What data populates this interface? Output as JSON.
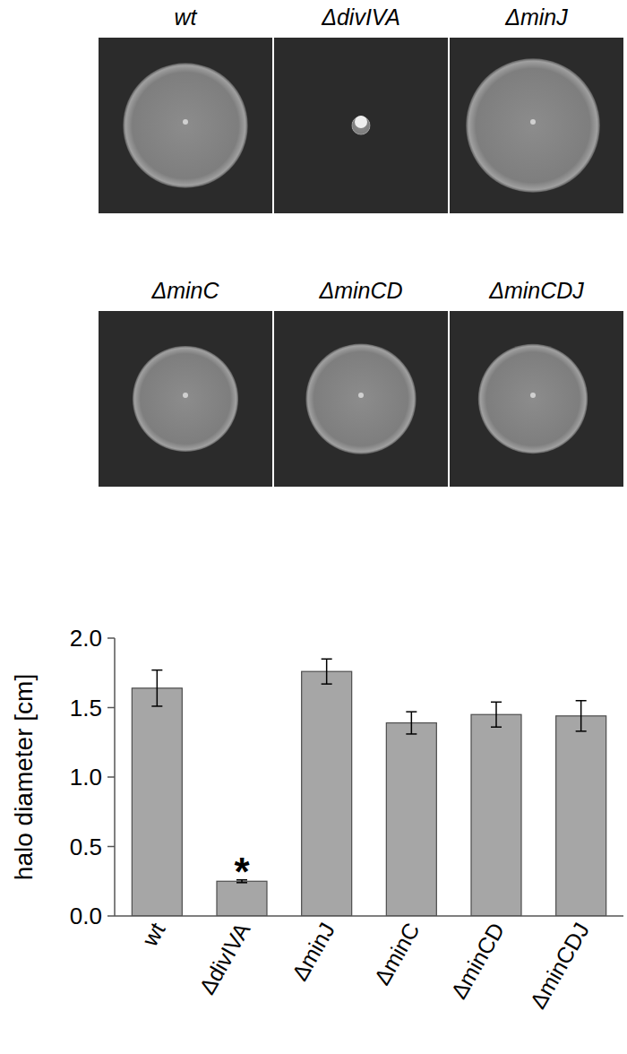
{
  "chart_data": {
    "type": "bar",
    "categories": [
      "wt",
      "ΔdivIVA",
      "ΔminJ",
      "ΔminC",
      "ΔminCD",
      "ΔminCDJ"
    ],
    "values": [
      1.64,
      0.25,
      1.76,
      1.39,
      1.45,
      1.44
    ],
    "errors": [
      0.13,
      0.01,
      0.09,
      0.08,
      0.09,
      0.11
    ],
    "y_label": "halo diameter [cm]",
    "ylim": [
      0,
      2.0
    ],
    "yticks": [
      {
        "value": 0,
        "label": "0.0"
      },
      {
        "value": 0.5,
        "label": "0.5"
      },
      {
        "value": 1.0,
        "label": "1.0"
      },
      {
        "value": 1.5,
        "label": "1.5"
      },
      {
        "value": 2.0,
        "label": "2.0"
      }
    ],
    "annotations": [
      {
        "text": "*",
        "x": "ΔdivIVA"
      }
    ],
    "color": "#a6a6a6",
    "grid": false
  }
}
